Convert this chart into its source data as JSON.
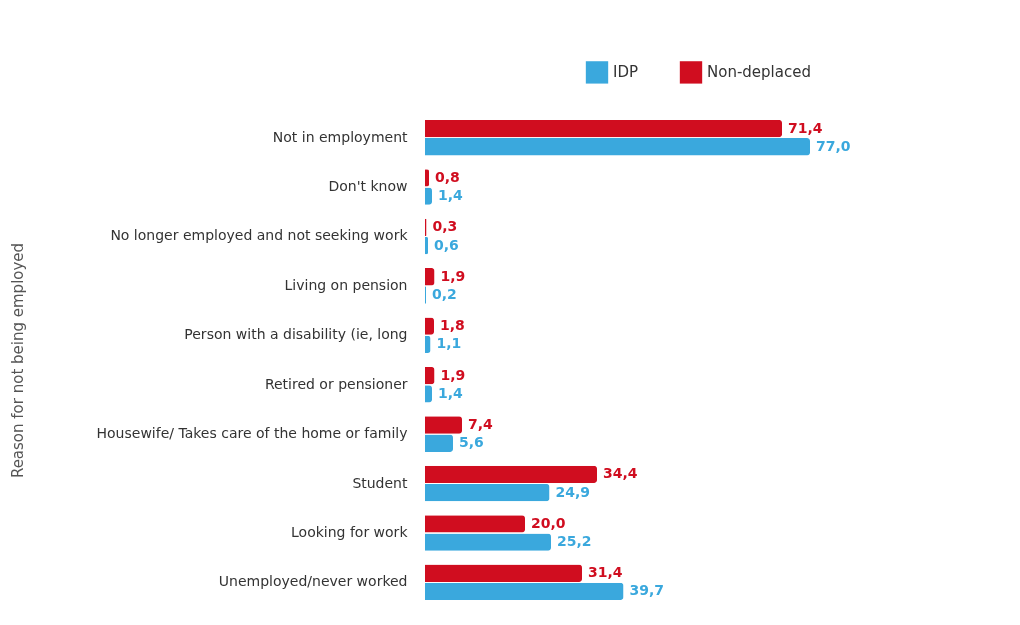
{
  "chart_data": {
    "type": "bar",
    "orientation": "horizontal",
    "ylabel": "Reason for not being employed",
    "categories": [
      "Not in employment",
      "Don't know",
      "No longer employed and not seeking work",
      "Living on pension",
      "Person with a disability (ie, long",
      "Retired or pensioner",
      "Housewife/ Takes care of the home or family",
      "Student",
      "Looking for work",
      "Unemployed/never worked"
    ],
    "series": [
      {
        "name": "IDP",
        "color": "#3aa8dd",
        "values": [
          77.0,
          1.4,
          0.6,
          0.2,
          1.1,
          1.4,
          5.6,
          24.9,
          25.2,
          39.7
        ],
        "value_labels": [
          "77,0",
          "1,4",
          "0,6",
          "0,2",
          "1,1",
          "1,4",
          "5,6",
          "24,9",
          "25,2",
          "39,7"
        ]
      },
      {
        "name": "Non-deplaced",
        "color": "#d00d1f",
        "values": [
          71.4,
          0.8,
          0.3,
          1.9,
          1.8,
          1.9,
          7.4,
          34.4,
          20.0,
          31.4
        ],
        "value_labels": [
          "71,4",
          "0,8",
          "0,3",
          "1,9",
          "1,8",
          "1,9",
          "7,4",
          "34,4",
          "20,0",
          "31,4"
        ]
      }
    ],
    "legend": "top right",
    "grid": false,
    "tick_labels": "y"
  }
}
